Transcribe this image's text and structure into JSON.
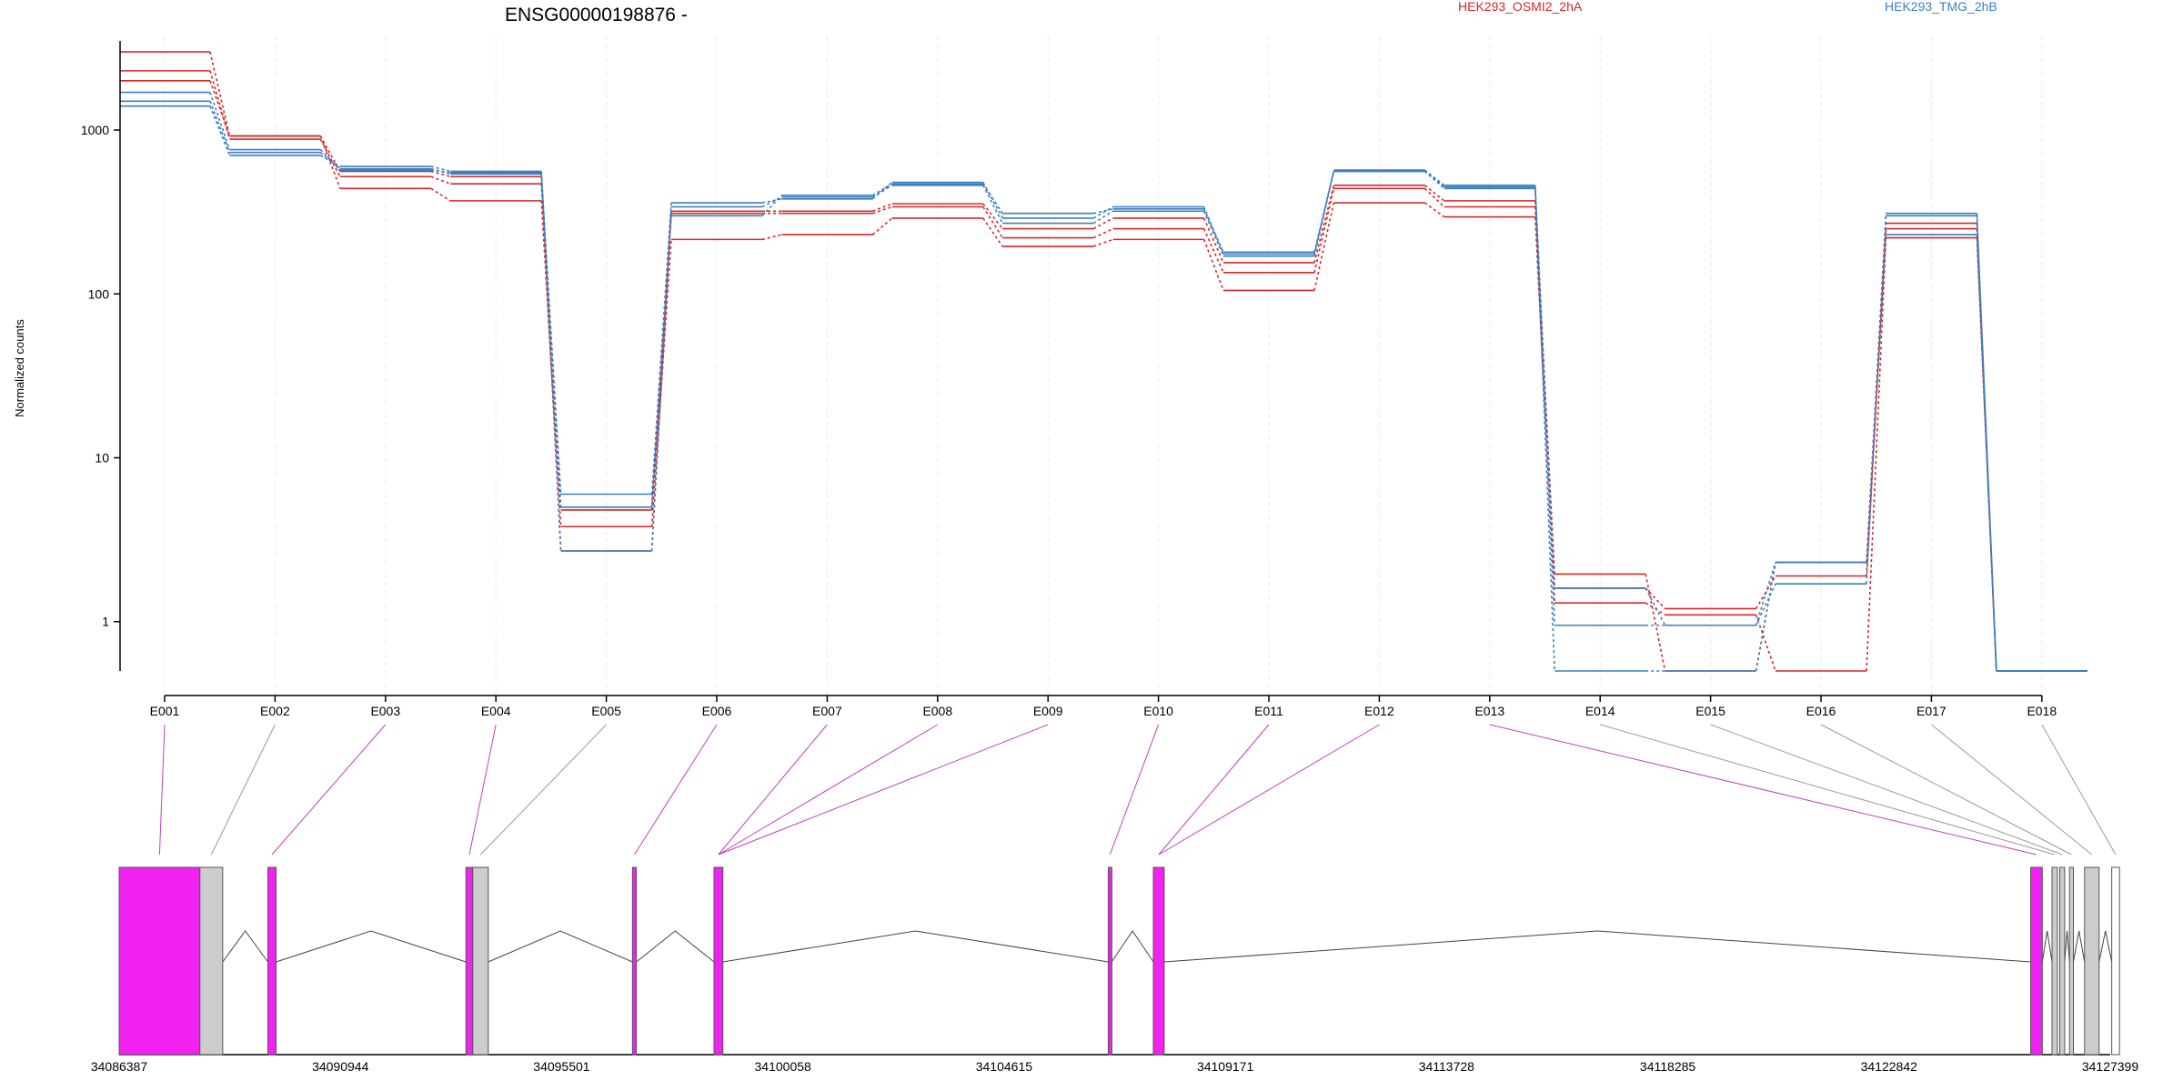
{
  "chart_data": {
    "type": "line",
    "title": "ENSG00000198876 -",
    "ylabel": "Normalized counts",
    "xlabel": "",
    "yscale": "log",
    "yticks": [
      1,
      10,
      100,
      1000
    ],
    "ytick_labels": [
      "1",
      "10",
      "100",
      "1000"
    ],
    "ylim": [
      0.5,
      3500
    ],
    "grid": "vertical dashed at each exon",
    "categories": [
      "E001",
      "E002",
      "E003",
      "E004",
      "E005",
      "E006",
      "E007",
      "E008",
      "E009",
      "E010",
      "E011",
      "E012",
      "E013",
      "E014",
      "E015",
      "E016",
      "E017",
      "E018"
    ],
    "legend": [
      {
        "label": "HEK293_OSMI2_2hA",
        "color": "#d62728"
      },
      {
        "label": "HEK293_TMG_2hB",
        "color": "#3a7ebf"
      }
    ],
    "colors": {
      "osmi": "#d62728",
      "tmg": "#3a7ebf",
      "exon_significant": "#f122f1",
      "exon_normal": "#cccccc",
      "exon_connector_sig": "#c040c0",
      "exon_connector_norm": "#999999"
    },
    "series": [
      {
        "group": "HEK293_OSMI2_2hA",
        "values": [
          3000,
          920,
          440,
          370,
          3.8,
          215,
          230,
          290,
          195,
          215,
          105,
          360,
          295,
          1.3,
          1.1,
          0.5,
          220,
          0.5
        ]
      },
      {
        "group": "HEK293_OSMI2_2hA",
        "values": [
          2300,
          880,
          520,
          470,
          4.8,
          310,
          310,
          340,
          220,
          250,
          135,
          440,
          340,
          1.6,
          1.2,
          1.9,
          250,
          0.5
        ]
      },
      {
        "group": "HEK293_OSMI2_2hA",
        "values": [
          2000,
          920,
          560,
          520,
          2.7,
          320,
          320,
          355,
          250,
          290,
          155,
          460,
          370,
          1.95,
          0.5,
          2.3,
          270,
          0.5
        ]
      },
      {
        "group": "HEK293_TMG_2hB",
        "values": [
          1400,
          700,
          600,
          560,
          2.7,
          340,
          390,
          460,
          270,
          320,
          170,
          560,
          440,
          0.95,
          0.95,
          1.7,
          300,
          0.5
        ]
      },
      {
        "group": "HEK293_TMG_2hB",
        "values": [
          1500,
          730,
          580,
          540,
          6.0,
          360,
          380,
          480,
          290,
          340,
          175,
          570,
          460,
          1.6,
          0.95,
          2.3,
          230,
          0.5
        ]
      },
      {
        "group": "HEK293_TMG_2hB",
        "values": [
          1700,
          760,
          570,
          550,
          5.0,
          300,
          400,
          470,
          310,
          330,
          180,
          560,
          450,
          0.5,
          0.5,
          2.3,
          310,
          0.5
        ]
      }
    ],
    "gene_model": {
      "coordinate_labels": [
        "34086387",
        "34090944",
        "34095501",
        "34100058",
        "34104615",
        "34109171",
        "34113728",
        "34118285",
        "34122842",
        "34127399"
      ],
      "coordinate_range": [
        34086387,
        34127399
      ],
      "exons": [
        {
          "start": 34086387,
          "end": 34088050,
          "fill": "sig",
          "link_exon": 0
        },
        {
          "start": 34088050,
          "end": 34088520,
          "fill": "norm",
          "link_exon": 1
        },
        {
          "start": 34089450,
          "end": 34089620,
          "fill": "sig",
          "link_exon": 2
        },
        {
          "start": 34093530,
          "end": 34093670,
          "fill": "sig",
          "link_exon": 3
        },
        {
          "start": 34093670,
          "end": 34093990,
          "fill": "norm",
          "link_exon": 4
        },
        {
          "start": 34096960,
          "end": 34097040,
          "fill": "sig",
          "link_exon": 5
        },
        {
          "start": 34098640,
          "end": 34098820,
          "fill": "sig",
          "link_exon": 6
        },
        {
          "start": 34098640,
          "end": 34098820,
          "fill": "sig",
          "link_exon": 7
        },
        {
          "start": 34098640,
          "end": 34098820,
          "fill": "sig",
          "link_exon": 8
        },
        {
          "start": 34106760,
          "end": 34106830,
          "fill": "sig",
          "link_exon": 9
        },
        {
          "start": 34107690,
          "end": 34107910,
          "fill": "sig",
          "link_exon": 10
        },
        {
          "start": 34107690,
          "end": 34107910,
          "fill": "sig",
          "link_exon": 11
        },
        {
          "start": 34125760,
          "end": 34126000,
          "fill": "sig",
          "link_exon": 12
        },
        {
          "start": 34126200,
          "end": 34126310,
          "fill": "norm",
          "link_exon": 13
        },
        {
          "start": 34126360,
          "end": 34126460,
          "fill": "norm",
          "link_exon": 14
        },
        {
          "start": 34126560,
          "end": 34126640,
          "fill": "norm",
          "link_exon": 15
        },
        {
          "start": 34126870,
          "end": 34127170,
          "fill": "norm",
          "link_exon": 16
        },
        {
          "start": 34127430,
          "end": 34127590,
          "fill": "none",
          "link_exon": 17
        }
      ]
    }
  }
}
